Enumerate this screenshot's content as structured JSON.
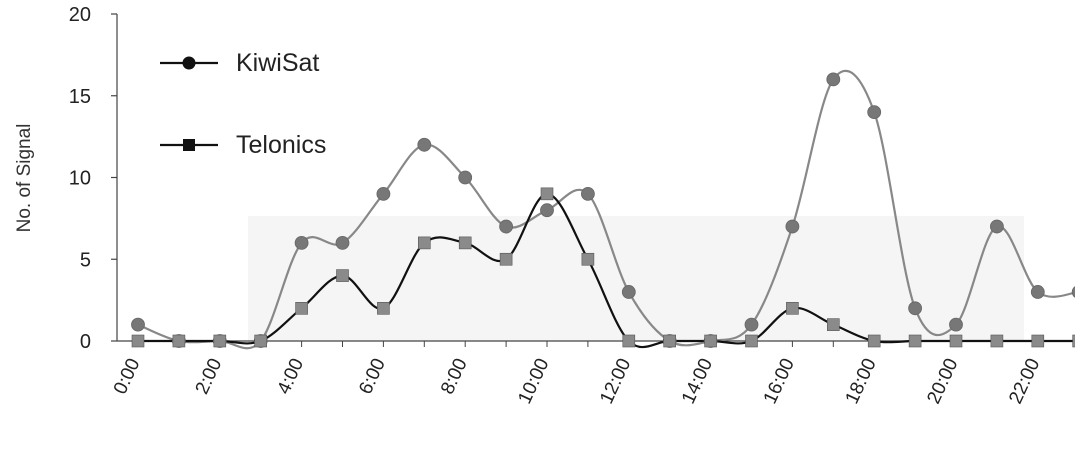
{
  "chart_data": {
    "type": "line",
    "title": "",
    "xlabel": "",
    "ylabel": "No. of Signal",
    "ylim": [
      0,
      20
    ],
    "yticks": [
      0,
      5,
      10,
      15,
      20
    ],
    "x": [
      0,
      1,
      2,
      3,
      4,
      5,
      6,
      7,
      8,
      9,
      10,
      11,
      12,
      13,
      14,
      15,
      16,
      17,
      18,
      19,
      20,
      21,
      22,
      23
    ],
    "xtick_labels": [
      "0:00",
      "2:00",
      "4:00",
      "6:00",
      "8:00",
      "10:00",
      "12:00",
      "14:00",
      "16:00",
      "18:00",
      "20:00",
      "22:00"
    ],
    "xtick_hours": [
      0,
      2,
      4,
      6,
      8,
      10,
      12,
      14,
      16,
      18,
      20,
      22
    ],
    "legend_position": "top-left",
    "grid": false,
    "series": [
      {
        "name": "KiwiSat",
        "marker": "circle",
        "line_color": "#888888",
        "marker_color": "#777777",
        "values": [
          1,
          0,
          0,
          0,
          6,
          6,
          9,
          12,
          10,
          7,
          8,
          9,
          3,
          0,
          0,
          1,
          7,
          16,
          14,
          2,
          1,
          7,
          3,
          3
        ]
      },
      {
        "name": "Telonics",
        "marker": "square",
        "line_color": "#111111",
        "marker_color": "#8a8a8a",
        "values": [
          0,
          0,
          0,
          0,
          2,
          4,
          2,
          6,
          6,
          5,
          9,
          5,
          0,
          0,
          0,
          0,
          2,
          1,
          0,
          0,
          0,
          0,
          0,
          0
        ]
      }
    ]
  }
}
